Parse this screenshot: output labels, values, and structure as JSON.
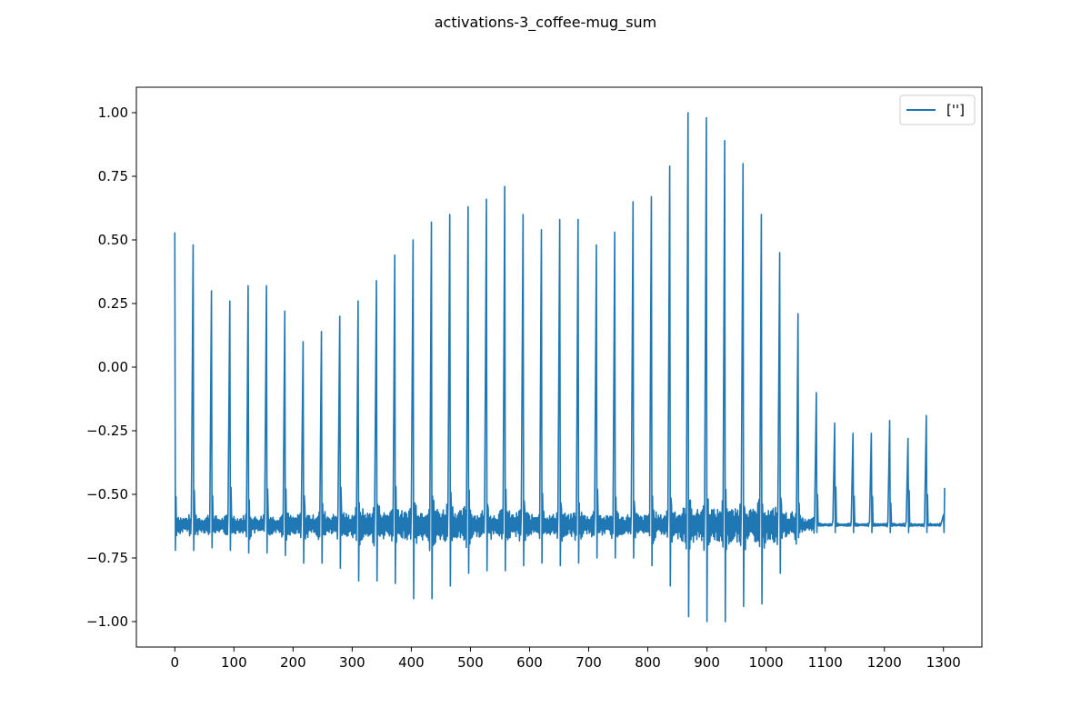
{
  "chart_data": {
    "type": "line",
    "title": "activations-3_coffee-mug_sum",
    "xlabel": "",
    "ylabel": "",
    "xlim": [
      -65,
      1365
    ],
    "ylim": [
      -1.1,
      1.1
    ],
    "x_ticks": [
      0,
      100,
      200,
      300,
      400,
      500,
      600,
      700,
      800,
      900,
      1000,
      1100,
      1200,
      1300
    ],
    "x_tick_labels": [
      "0",
      "100",
      "200",
      "300",
      "400",
      "500",
      "600",
      "700",
      "800",
      "900",
      "1000",
      "1100",
      "1200",
      "1300"
    ],
    "y_ticks": [
      1.0,
      0.75,
      0.5,
      0.25,
      0.0,
      -0.25,
      -0.5,
      -0.75,
      -1.0
    ],
    "y_tick_labels": [
      "1.00",
      "0.75",
      "0.50",
      "0.25",
      "0.00",
      "−0.25",
      "−0.50",
      "−0.75",
      "−1.00"
    ],
    "grid": false,
    "legend_position": "top-right",
    "color": "#1f77b4",
    "baseline": -0.62,
    "series": [
      {
        "name": "['']",
        "x": [
          0,
          31,
          62,
          93,
          124,
          155,
          186,
          217,
          248,
          279,
          310,
          341,
          372,
          403,
          434,
          465,
          496,
          527,
          558,
          589,
          620,
          651,
          682,
          713,
          744,
          775,
          806,
          837,
          868,
          899,
          930,
          961,
          992,
          1023,
          1054,
          1085,
          1116,
          1147,
          1178,
          1209,
          1240,
          1271,
          1300
        ],
        "peaks": [
          0.53,
          0.48,
          0.3,
          0.26,
          0.32,
          0.32,
          0.22,
          0.1,
          0.14,
          0.2,
          0.26,
          0.34,
          0.44,
          0.5,
          0.57,
          0.6,
          0.63,
          0.66,
          0.71,
          0.6,
          0.54,
          0.58,
          0.58,
          0.48,
          0.53,
          0.65,
          0.67,
          0.79,
          1.0,
          0.98,
          0.89,
          0.8,
          0.6,
          0.45,
          0.21,
          -0.1,
          -0.22,
          -0.26,
          -0.26,
          -0.21,
          -0.28,
          -0.19,
          -0.58
        ],
        "troughs": [
          -0.72,
          -0.72,
          -0.71,
          -0.72,
          -0.73,
          -0.73,
          -0.74,
          -0.77,
          -0.77,
          -0.79,
          -0.84,
          -0.84,
          -0.85,
          -0.91,
          -0.91,
          -0.86,
          -0.81,
          -0.8,
          -0.8,
          -0.78,
          -0.77,
          -0.78,
          -0.77,
          -0.75,
          -0.75,
          -0.75,
          -0.78,
          -0.86,
          -0.98,
          -1.0,
          -1.0,
          -0.94,
          -0.93,
          -0.81,
          -0.67,
          -0.65,
          -0.65,
          -0.65,
          -0.65,
          -0.65,
          -0.65,
          -0.65,
          -0.65
        ]
      }
    ]
  }
}
